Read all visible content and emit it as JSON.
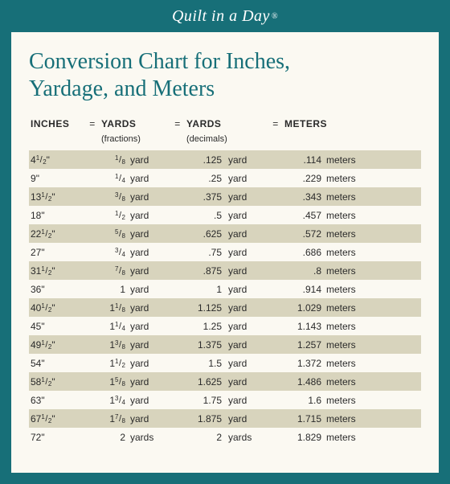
{
  "brand": "Quilt in a Day",
  "brand_symbol": "®",
  "title_line1": "Conversion Chart for Inches,",
  "title_line2": "Yardage, and Meters",
  "columns": {
    "inches": "INCHES",
    "eq": "=",
    "yards_frac": "YARDS",
    "yards_dec": "YARDS",
    "meters": "METERS",
    "sub_frac": "(fractions)",
    "sub_dec": "(decimals)"
  },
  "rows": [
    {
      "inches_whole": "4",
      "inches_frac_n": "1",
      "inches_frac_d": "2",
      "yf_whole": "",
      "yf_n": "1",
      "yf_d": "8",
      "yf_unit": "yard",
      "yd": ".125",
      "yd_unit": "yard",
      "m": ".114",
      "m_unit": "meters"
    },
    {
      "inches_whole": "9",
      "inches_frac_n": "",
      "inches_frac_d": "",
      "yf_whole": "",
      "yf_n": "1",
      "yf_d": "4",
      "yf_unit": "yard",
      "yd": ".25",
      "yd_unit": "yard",
      "m": ".229",
      "m_unit": "meters"
    },
    {
      "inches_whole": "13",
      "inches_frac_n": "1",
      "inches_frac_d": "2",
      "yf_whole": "",
      "yf_n": "3",
      "yf_d": "8",
      "yf_unit": "yard",
      "yd": ".375",
      "yd_unit": "yard",
      "m": ".343",
      "m_unit": "meters"
    },
    {
      "inches_whole": "18",
      "inches_frac_n": "",
      "inches_frac_d": "",
      "yf_whole": "",
      "yf_n": "1",
      "yf_d": "2",
      "yf_unit": "yard",
      "yd": ".5",
      "yd_unit": "yard",
      "m": ".457",
      "m_unit": "meters"
    },
    {
      "inches_whole": "22",
      "inches_frac_n": "1",
      "inches_frac_d": "2",
      "yf_whole": "",
      "yf_n": "5",
      "yf_d": "8",
      "yf_unit": "yard",
      "yd": ".625",
      "yd_unit": "yard",
      "m": ".572",
      "m_unit": "meters"
    },
    {
      "inches_whole": "27",
      "inches_frac_n": "",
      "inches_frac_d": "",
      "yf_whole": "",
      "yf_n": "3",
      "yf_d": "4",
      "yf_unit": "yard",
      "yd": ".75",
      "yd_unit": "yard",
      "m": ".686",
      "m_unit": "meters"
    },
    {
      "inches_whole": "31",
      "inches_frac_n": "1",
      "inches_frac_d": "2",
      "yf_whole": "",
      "yf_n": "7",
      "yf_d": "8",
      "yf_unit": "yard",
      "yd": ".875",
      "yd_unit": "yard",
      "m": ".8",
      "m_unit": "meters"
    },
    {
      "inches_whole": "36",
      "inches_frac_n": "",
      "inches_frac_d": "",
      "yf_whole": "1",
      "yf_n": "",
      "yf_d": "",
      "yf_unit": "yard",
      "yd": "1",
      "yd_unit": "yard",
      "m": ".914",
      "m_unit": "meters"
    },
    {
      "inches_whole": "40",
      "inches_frac_n": "1",
      "inches_frac_d": "2",
      "yf_whole": "1",
      "yf_n": "1",
      "yf_d": "8",
      "yf_unit": "yard",
      "yd": "1.125",
      "yd_unit": "yard",
      "m": "1.029",
      "m_unit": "meters"
    },
    {
      "inches_whole": "45",
      "inches_frac_n": "",
      "inches_frac_d": "",
      "yf_whole": "1",
      "yf_n": "1",
      "yf_d": "4",
      "yf_unit": "yard",
      "yd": "1.25",
      "yd_unit": "yard",
      "m": "1.143",
      "m_unit": "meters"
    },
    {
      "inches_whole": "49",
      "inches_frac_n": "1",
      "inches_frac_d": "2",
      "yf_whole": "1",
      "yf_n": "3",
      "yf_d": "8",
      "yf_unit": "yard",
      "yd": "1.375",
      "yd_unit": "yard",
      "m": "1.257",
      "m_unit": "meters"
    },
    {
      "inches_whole": "54",
      "inches_frac_n": "",
      "inches_frac_d": "",
      "yf_whole": "1",
      "yf_n": "1",
      "yf_d": "2",
      "yf_unit": "yard",
      "yd": "1.5",
      "yd_unit": "yard",
      "m": "1.372",
      "m_unit": "meters"
    },
    {
      "inches_whole": "58",
      "inches_frac_n": "1",
      "inches_frac_d": "2",
      "yf_whole": "1",
      "yf_n": "5",
      "yf_d": "8",
      "yf_unit": "yard",
      "yd": "1.625",
      "yd_unit": "yard",
      "m": "1.486",
      "m_unit": "meters"
    },
    {
      "inches_whole": "63",
      "inches_frac_n": "",
      "inches_frac_d": "",
      "yf_whole": "1",
      "yf_n": "3",
      "yf_d": "4",
      "yf_unit": "yard",
      "yd": "1.75",
      "yd_unit": "yard",
      "m": "1.6",
      "m_unit": "meters"
    },
    {
      "inches_whole": "67",
      "inches_frac_n": "1",
      "inches_frac_d": "2",
      "yf_whole": "1",
      "yf_n": "7",
      "yf_d": "8",
      "yf_unit": "yard",
      "yd": "1.875",
      "yd_unit": "yard",
      "m": "1.715",
      "m_unit": "meters"
    },
    {
      "inches_whole": "72",
      "inches_frac_n": "",
      "inches_frac_d": "",
      "yf_whole": "2",
      "yf_n": "",
      "yf_d": "",
      "yf_unit": "yards",
      "yd": "2",
      "yd_unit": "yards",
      "m": "1.829",
      "m_unit": "meters"
    }
  ],
  "colors": {
    "teal": "#176f78",
    "cream": "#fbf9f2",
    "stripe": "#d8d4bd",
    "text": "#2a2a2a"
  }
}
